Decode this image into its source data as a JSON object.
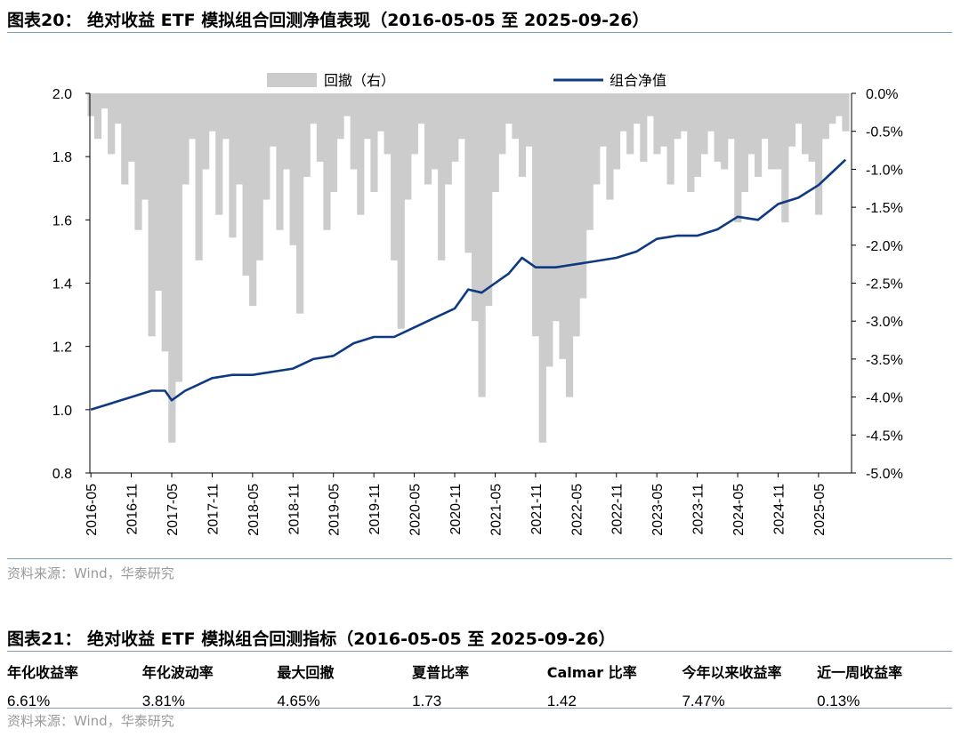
{
  "fig20": {
    "title": "图表20：  绝对收益 ETF 模拟组合回测净值表现（2016-05-05 至 2025-09-26）",
    "source": "资料来源：Wind，华泰研究"
  },
  "chart_data": {
    "type": "line",
    "legend": [
      "回撤（右）",
      "组合净值"
    ],
    "colors": {
      "nav": "#0f3a82",
      "drawdown": "#cccccc"
    },
    "y_left": {
      "ylim": [
        0.8,
        2.0
      ],
      "ticks": [
        "0.8",
        "1.0",
        "1.2",
        "1.4",
        "1.6",
        "1.8",
        "2.0"
      ]
    },
    "y_right": {
      "ylim": [
        -5.0,
        0.0
      ],
      "ticks": [
        "0.0%",
        "-0.5%",
        "-1.0%",
        "-1.5%",
        "-2.0%",
        "-2.5%",
        "-3.0%",
        "-3.5%",
        "-4.0%",
        "-4.5%",
        "-5.0%"
      ]
    },
    "x_ticks": [
      "2016-05",
      "2016-11",
      "2017-05",
      "2017-11",
      "2018-05",
      "2018-11",
      "2019-05",
      "2019-11",
      "2020-05",
      "2020-11",
      "2021-05",
      "2021-11",
      "2022-05",
      "2022-11",
      "2023-05",
      "2023-11",
      "2024-05",
      "2024-11",
      "2025-05"
    ],
    "series": [
      {
        "name": "组合净值",
        "x": [
          "2016-05",
          "2016-08",
          "2016-11",
          "2017-02",
          "2017-04",
          "2017-05",
          "2017-07",
          "2017-09",
          "2017-11",
          "2018-02",
          "2018-05",
          "2018-08",
          "2018-11",
          "2019-02",
          "2019-05",
          "2019-08",
          "2019-11",
          "2020-02",
          "2020-05",
          "2020-07",
          "2020-09",
          "2020-11",
          "2021-01",
          "2021-03",
          "2021-05",
          "2021-07",
          "2021-09",
          "2021-11",
          "2022-02",
          "2022-05",
          "2022-08",
          "2022-11",
          "2023-02",
          "2023-05",
          "2023-08",
          "2023-11",
          "2024-02",
          "2024-05",
          "2024-08",
          "2024-11",
          "2025-02",
          "2025-05",
          "2025-07",
          "2025-09"
        ],
        "values": [
          1.0,
          1.02,
          1.04,
          1.06,
          1.06,
          1.03,
          1.06,
          1.08,
          1.1,
          1.11,
          1.11,
          1.12,
          1.13,
          1.16,
          1.17,
          1.21,
          1.23,
          1.23,
          1.26,
          1.28,
          1.3,
          1.32,
          1.38,
          1.37,
          1.4,
          1.43,
          1.48,
          1.45,
          1.45,
          1.46,
          1.47,
          1.48,
          1.5,
          1.54,
          1.55,
          1.55,
          1.57,
          1.61,
          1.6,
          1.65,
          1.67,
          1.71,
          1.75,
          1.79
        ]
      },
      {
        "name": "回撤（右）",
        "x": [
          "2016-05",
          "2016-06",
          "2016-07",
          "2016-08",
          "2016-09",
          "2016-10",
          "2016-11",
          "2016-12",
          "2017-01",
          "2017-02",
          "2017-03",
          "2017-04",
          "2017-05",
          "2017-06",
          "2017-07",
          "2017-08",
          "2017-09",
          "2017-10",
          "2017-11",
          "2017-12",
          "2018-01",
          "2018-02",
          "2018-03",
          "2018-04",
          "2018-05",
          "2018-06",
          "2018-07",
          "2018-08",
          "2018-09",
          "2018-10",
          "2018-11",
          "2018-12",
          "2019-01",
          "2019-02",
          "2019-03",
          "2019-04",
          "2019-05",
          "2019-06",
          "2019-07",
          "2019-08",
          "2019-09",
          "2019-10",
          "2019-11",
          "2019-12",
          "2020-01",
          "2020-02",
          "2020-03",
          "2020-04",
          "2020-05",
          "2020-06",
          "2020-07",
          "2020-08",
          "2020-09",
          "2020-10",
          "2020-11",
          "2020-12",
          "2021-01",
          "2021-02",
          "2021-03",
          "2021-04",
          "2021-05",
          "2021-06",
          "2021-07",
          "2021-08",
          "2021-09",
          "2021-10",
          "2021-11",
          "2021-12",
          "2022-01",
          "2022-02",
          "2022-03",
          "2022-04",
          "2022-05",
          "2022-06",
          "2022-07",
          "2022-08",
          "2022-09",
          "2022-10",
          "2022-11",
          "2022-12",
          "2023-01",
          "2023-02",
          "2023-03",
          "2023-04",
          "2023-05",
          "2023-06",
          "2023-07",
          "2023-08",
          "2023-09",
          "2023-10",
          "2023-11",
          "2023-12",
          "2024-01",
          "2024-02",
          "2024-03",
          "2024-04",
          "2024-05",
          "2024-06",
          "2024-07",
          "2024-08",
          "2024-09",
          "2024-10",
          "2024-11",
          "2024-12",
          "2025-01",
          "2025-02",
          "2025-03",
          "2025-04",
          "2025-05",
          "2025-06",
          "2025-07",
          "2025-08",
          "2025-09"
        ],
        "values": [
          -0.3,
          -0.6,
          -0.2,
          -0.8,
          -0.4,
          -1.2,
          -0.9,
          -1.8,
          -1.4,
          -3.2,
          -2.6,
          -3.4,
          -4.6,
          -3.8,
          -1.2,
          -0.6,
          -2.2,
          -1.0,
          -0.5,
          -1.6,
          -0.6,
          -1.9,
          -1.2,
          -2.4,
          -2.8,
          -2.2,
          -1.4,
          -0.7,
          -1.8,
          -1.0,
          -2.0,
          -2.9,
          -1.1,
          -0.4,
          -0.9,
          -1.8,
          -1.3,
          -0.6,
          -0.3,
          -1.0,
          -1.6,
          -0.6,
          -1.3,
          -0.5,
          -0.8,
          -2.2,
          -3.1,
          -1.4,
          -0.8,
          -0.4,
          -1.2,
          -1.0,
          -2.2,
          -1.2,
          -0.9,
          -0.6,
          -2.1,
          -3.0,
          -4.0,
          -2.8,
          -1.3,
          -0.8,
          -0.4,
          -0.6,
          -1.1,
          -0.7,
          -3.2,
          -4.6,
          -3.6,
          -3.0,
          -3.5,
          -4.0,
          -3.2,
          -2.7,
          -1.8,
          -1.2,
          -0.7,
          -1.4,
          -1.0,
          -0.5,
          -0.8,
          -0.4,
          -0.9,
          -0.3,
          -0.8,
          -0.7,
          -1.2,
          -0.6,
          -0.5,
          -1.3,
          -1.1,
          -0.8,
          -0.5,
          -0.9,
          -1.0,
          -0.6,
          -1.7,
          -1.3,
          -0.8,
          -1.1,
          -0.6,
          -1.0,
          -1.0,
          -1.7,
          -0.7,
          -0.4,
          -0.8,
          -0.9,
          -1.6,
          -0.6,
          -0.4,
          -0.3,
          -0.5
        ]
      }
    ]
  },
  "fig21": {
    "title": "图表21：  绝对收益 ETF 模拟组合回测指标（2016-05-05 至 2025-09-26）",
    "headers": [
      "年化收益率",
      "年化波动率",
      "最大回撤",
      "夏普比率",
      "Calmar 比率",
      "今年以来收益率",
      "近一周收益率"
    ],
    "values": [
      "6.61%",
      "3.81%",
      "4.65%",
      "1.73",
      "1.42",
      "7.47%",
      "0.13%"
    ],
    "source": "资料来源：Wind，华泰研究"
  }
}
